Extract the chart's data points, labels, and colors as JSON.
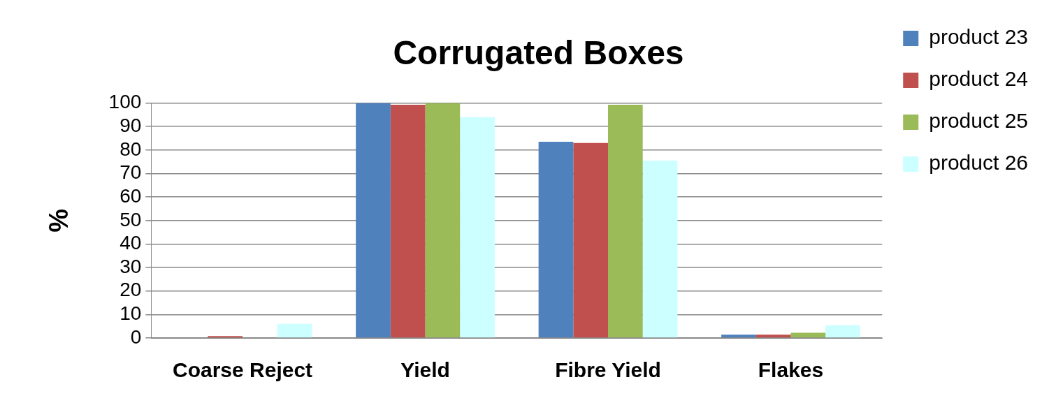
{
  "chart_data": {
    "type": "bar",
    "title": "Corrugated Boxes",
    "ylabel": "%",
    "categories": [
      "Coarse Reject",
      "Yield",
      "Fibre Yield",
      "Flakes"
    ],
    "series": [
      {
        "name": "product 23",
        "color": "#4f81bd",
        "values": [
          0,
          100,
          83.5,
          1.4
        ]
      },
      {
        "name": "product 24",
        "color": "#c0504d",
        "values": [
          0.8,
          99.3,
          83,
          1.4
        ]
      },
      {
        "name": "product 25",
        "color": "#9bbb59",
        "values": [
          0,
          100,
          99.3,
          2.2
        ]
      },
      {
        "name": "product 26",
        "color": "#ccffff",
        "values": [
          6,
          94,
          75.5,
          5.4
        ]
      }
    ],
    "ylim": [
      0,
      100
    ],
    "yticks": [
      0,
      10,
      20,
      30,
      40,
      50,
      60,
      70,
      80,
      90,
      100
    ],
    "grid": "y",
    "legend": "right"
  }
}
